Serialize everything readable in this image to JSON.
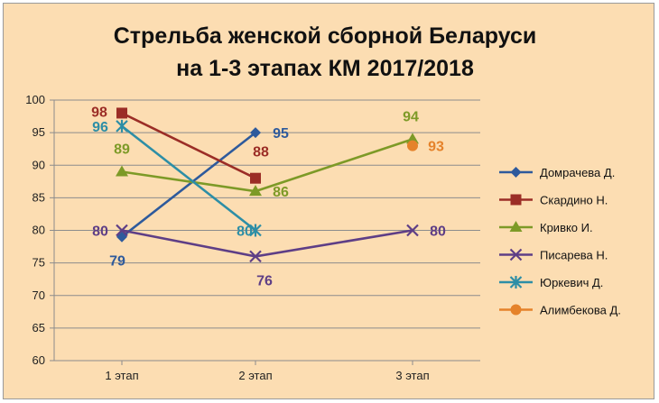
{
  "chart_data": {
    "type": "line",
    "title": "Стрельба женской сборной Беларуси",
    "subtitle": "на 1-3 этапах КМ 2017/2018",
    "categories": [
      "1 этап",
      "2 этап",
      "3 этап"
    ],
    "ylim": [
      60,
      100
    ],
    "yticks": [
      60,
      65,
      70,
      75,
      80,
      85,
      90,
      95,
      100
    ],
    "grid": true,
    "legend_position": "right",
    "series": [
      {
        "name": "Домрачева Д.",
        "values": [
          79,
          95,
          null
        ],
        "labels": [
          "79",
          "95",
          ""
        ],
        "color": "#2e5a9c",
        "marker": "diamond"
      },
      {
        "name": "Скардино Н.",
        "values": [
          98,
          88,
          null
        ],
        "labels": [
          "98",
          "88",
          ""
        ],
        "color": "#9b2d26",
        "marker": "square"
      },
      {
        "name": "Кривко И.",
        "values": [
          89,
          86,
          94
        ],
        "labels": [
          "89",
          "86",
          "94"
        ],
        "color": "#7d9a27",
        "marker": "triangle"
      },
      {
        "name": "Писарева Н.",
        "values": [
          80,
          76,
          80
        ],
        "labels": [
          "80",
          "76",
          "80"
        ],
        "color": "#5e3e86",
        "marker": "x"
      },
      {
        "name": "Юркевич Д.",
        "values": [
          96,
          80,
          null
        ],
        "labels": [
          "96",
          "80",
          ""
        ],
        "color": "#2d8ea6",
        "marker": "star"
      },
      {
        "name": "Алимбекова Д.",
        "values": [
          null,
          null,
          93
        ],
        "labels": [
          "",
          "",
          "93"
        ],
        "color": "#e5822a",
        "marker": "circle"
      }
    ]
  }
}
